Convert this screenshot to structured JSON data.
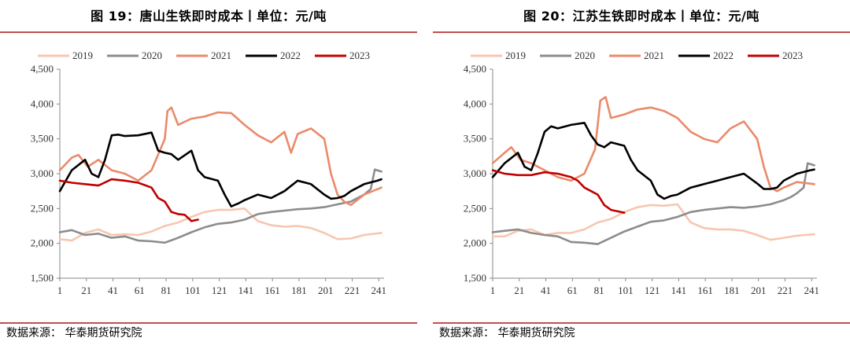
{
  "colors": {
    "2019": "#f7c6b0",
    "2020": "#8c8c8c",
    "2021": "#ea8a6a",
    "2022": "#000000",
    "2023": "#c00000",
    "rule": "#c0504d"
  },
  "panels": [
    {
      "title": "图 19：唐山生铁即时成本丨单位：元/吨",
      "source": "数据来源：  华泰期货研究院"
    },
    {
      "title": "图 20：江苏生铁即时成本丨单位：元/吨",
      "source": "数据来源：  华泰期货研究院"
    }
  ],
  "chart_data": [
    {
      "type": "line",
      "ylim": [
        1500,
        4500
      ],
      "yticks": [
        1500,
        2000,
        2500,
        3000,
        3500,
        4000,
        4500
      ],
      "xlim": [
        1,
        245
      ],
      "xticks": [
        1,
        21,
        41,
        61,
        81,
        101,
        121,
        141,
        161,
        181,
        201,
        221,
        241
      ],
      "legend_position": "top",
      "series": [
        {
          "name": "2019",
          "x": [
            1,
            10,
            20,
            30,
            40,
            50,
            60,
            70,
            80,
            90,
            100,
            110,
            120,
            130,
            140,
            150,
            160,
            170,
            180,
            190,
            200,
            210,
            220,
            230,
            243
          ],
          "y": [
            2060,
            2040,
            2150,
            2200,
            2120,
            2130,
            2120,
            2170,
            2250,
            2300,
            2380,
            2450,
            2480,
            2480,
            2500,
            2320,
            2260,
            2240,
            2250,
            2220,
            2150,
            2060,
            2070,
            2120,
            2150
          ]
        },
        {
          "name": "2020",
          "x": [
            1,
            10,
            20,
            30,
            40,
            50,
            60,
            70,
            80,
            90,
            100,
            110,
            120,
            130,
            140,
            150,
            160,
            170,
            180,
            190,
            200,
            210,
            220,
            225,
            230,
            235,
            238,
            243
          ],
          "y": [
            2160,
            2190,
            2120,
            2140,
            2080,
            2100,
            2040,
            2030,
            2010,
            2080,
            2160,
            2230,
            2280,
            2300,
            2340,
            2420,
            2450,
            2470,
            2490,
            2500,
            2520,
            2560,
            2600,
            2650,
            2700,
            2780,
            3060,
            3030
          ]
        },
        {
          "name": "2021",
          "x": [
            1,
            10,
            15,
            22,
            30,
            40,
            50,
            60,
            70,
            80,
            82,
            85,
            90,
            100,
            110,
            120,
            130,
            140,
            150,
            160,
            170,
            175,
            180,
            190,
            200,
            205,
            210,
            215,
            220,
            230,
            243
          ],
          "y": [
            3050,
            3230,
            3270,
            3100,
            3200,
            3050,
            3000,
            2900,
            3050,
            3500,
            3900,
            3950,
            3700,
            3790,
            3820,
            3880,
            3870,
            3700,
            3550,
            3450,
            3600,
            3300,
            3570,
            3650,
            3500,
            3000,
            2700,
            2600,
            2550,
            2700,
            2800
          ]
        },
        {
          "name": "2022",
          "x": [
            1,
            10,
            20,
            25,
            30,
            35,
            40,
            45,
            50,
            60,
            70,
            75,
            80,
            85,
            90,
            100,
            105,
            110,
            120,
            125,
            130,
            135,
            140,
            150,
            160,
            170,
            180,
            190,
            200,
            205,
            210,
            215,
            220,
            230,
            240,
            243
          ],
          "y": [
            2750,
            3050,
            3200,
            3000,
            2950,
            3200,
            3550,
            3560,
            3540,
            3550,
            3590,
            3330,
            3300,
            3280,
            3200,
            3330,
            3050,
            2950,
            2900,
            2700,
            2530,
            2570,
            2620,
            2700,
            2650,
            2750,
            2900,
            2850,
            2700,
            2640,
            2650,
            2680,
            2750,
            2850,
            2900,
            2920
          ]
        },
        {
          "name": "2023",
          "x": [
            1,
            10,
            20,
            30,
            40,
            50,
            60,
            70,
            75,
            80,
            85,
            90,
            95,
            100,
            105
          ],
          "y": [
            2900,
            2870,
            2850,
            2830,
            2920,
            2900,
            2870,
            2800,
            2650,
            2600,
            2450,
            2420,
            2410,
            2320,
            2340
          ]
        }
      ]
    },
    {
      "type": "line",
      "ylim": [
        1500,
        4500
      ],
      "yticks": [
        1500,
        2000,
        2500,
        3000,
        3500,
        4000,
        4500
      ],
      "xlim": [
        1,
        245
      ],
      "xticks": [
        1,
        21,
        41,
        61,
        81,
        101,
        121,
        141,
        161,
        181,
        201,
        221,
        241
      ],
      "legend_position": "top",
      "series": [
        {
          "name": "2019",
          "x": [
            1,
            10,
            20,
            30,
            40,
            50,
            60,
            70,
            80,
            90,
            100,
            110,
            120,
            130,
            140,
            150,
            160,
            170,
            180,
            190,
            200,
            210,
            220,
            230,
            243
          ],
          "y": [
            2100,
            2100,
            2180,
            2200,
            2120,
            2150,
            2150,
            2200,
            2300,
            2350,
            2450,
            2520,
            2550,
            2540,
            2560,
            2300,
            2220,
            2200,
            2200,
            2180,
            2120,
            2050,
            2080,
            2110,
            2130
          ]
        },
        {
          "name": "2020",
          "x": [
            1,
            10,
            20,
            30,
            40,
            50,
            60,
            70,
            80,
            90,
            100,
            110,
            120,
            130,
            140,
            150,
            160,
            170,
            180,
            190,
            200,
            210,
            220,
            225,
            230,
            235,
            238,
            243
          ],
          "y": [
            2160,
            2180,
            2200,
            2150,
            2120,
            2100,
            2020,
            2010,
            1990,
            2080,
            2170,
            2240,
            2310,
            2330,
            2380,
            2450,
            2480,
            2500,
            2520,
            2510,
            2530,
            2560,
            2620,
            2660,
            2720,
            2800,
            3150,
            3120
          ]
        },
        {
          "name": "2021",
          "x": [
            1,
            10,
            15,
            22,
            30,
            40,
            50,
            60,
            70,
            78,
            82,
            86,
            90,
            100,
            110,
            120,
            130,
            140,
            150,
            160,
            170,
            180,
            190,
            200,
            205,
            210,
            215,
            220,
            230,
            243
          ],
          "y": [
            3150,
            3300,
            3380,
            3200,
            3150,
            3050,
            2950,
            2900,
            3000,
            3350,
            4050,
            4100,
            3800,
            3850,
            3920,
            3950,
            3900,
            3800,
            3600,
            3500,
            3450,
            3650,
            3750,
            3500,
            3100,
            2800,
            2750,
            2800,
            2880,
            2850
          ]
        },
        {
          "name": "2022",
          "x": [
            1,
            10,
            20,
            25,
            30,
            35,
            40,
            45,
            50,
            60,
            70,
            75,
            80,
            85,
            90,
            100,
            105,
            110,
            120,
            125,
            130,
            135,
            140,
            150,
            160,
            170,
            180,
            190,
            200,
            205,
            210,
            215,
            220,
            230,
            240,
            243
          ],
          "y": [
            2950,
            3150,
            3300,
            3100,
            3050,
            3300,
            3600,
            3680,
            3650,
            3700,
            3730,
            3550,
            3420,
            3380,
            3450,
            3400,
            3200,
            3050,
            2900,
            2700,
            2640,
            2680,
            2700,
            2800,
            2850,
            2900,
            2950,
            3000,
            2860,
            2780,
            2780,
            2800,
            2900,
            3000,
            3050,
            3060
          ]
        },
        {
          "name": "2023",
          "x": [
            1,
            10,
            20,
            30,
            40,
            50,
            60,
            65,
            70,
            75,
            80,
            85,
            90,
            95,
            100
          ],
          "y": [
            3050,
            3000,
            2980,
            2980,
            3020,
            3000,
            2950,
            2900,
            2800,
            2750,
            2700,
            2550,
            2480,
            2460,
            2440
          ]
        }
      ]
    }
  ]
}
